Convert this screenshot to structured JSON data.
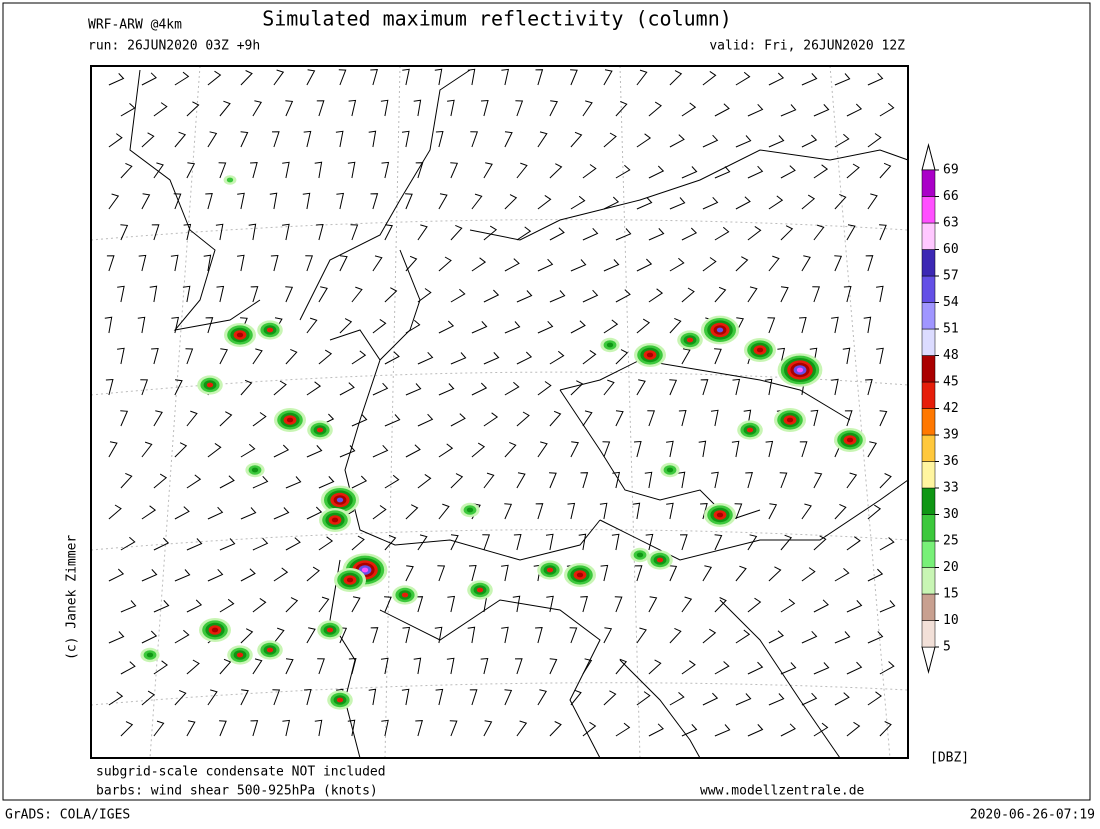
{
  "header": {
    "title": "Simulated maximum reflectivity (column)",
    "model": "WRF-ARW @4km",
    "run": "run: 26JUN2020 03Z +9h",
    "valid": "valid: Fri, 26JUN2020 12Z"
  },
  "credit": "(c) Janek Zimmer",
  "notes": [
    "subgrid-scale condensate NOT included",
    "barbs: wind shear 500-925hPa (knots)"
  ],
  "website": "www.modellzentrale.de",
  "colorbar": {
    "unit": "[DBZ]",
    "levels": [
      5,
      10,
      15,
      20,
      25,
      30,
      33,
      36,
      39,
      42,
      45,
      48,
      51,
      54,
      57,
      60,
      63,
      66,
      69
    ],
    "colors": [
      "#f2e0d8",
      "#c8a090",
      "#c8f5b4",
      "#78f078",
      "#3cc83c",
      "#0f9614",
      "#fff5a0",
      "#ffc83c",
      "#ff7800",
      "#e61e0a",
      "#aa0000",
      "#dcdcff",
      "#a096ff",
      "#6450e6",
      "#3c28b4",
      "#ffc8ff",
      "#ff50ff",
      "#aa00c8"
    ]
  },
  "footer": {
    "software": "GrADS: COLA/IGES",
    "timestamp": "2020-06-26-07:19"
  }
}
